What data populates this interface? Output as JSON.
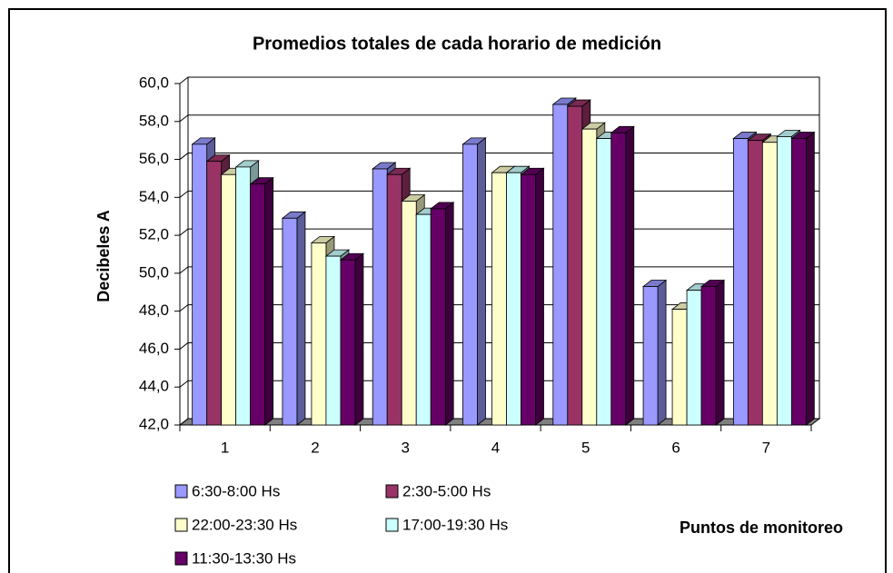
{
  "chart_data": {
    "type": "bar3d",
    "title": "Promedios totales de cada horario de medición",
    "y_label": "Decibeles A",
    "x_label": "Puntos de monitoreo",
    "categories": [
      "1",
      "2",
      "3",
      "4",
      "5",
      "6",
      "7"
    ],
    "series": [
      {
        "name": "6:30-8:00 Hs",
        "color": "#9999ff",
        "values": [
          56.8,
          52.9,
          55.5,
          56.8,
          58.9,
          49.3,
          57.1
        ]
      },
      {
        "name": "2:30-5:00 Hs",
        "color": "#993366",
        "values": [
          55.9,
          null,
          55.2,
          null,
          58.8,
          null,
          57.0
        ]
      },
      {
        "name": "22:00-23:30 Hs",
        "color": "#ffffcc",
        "values": [
          55.2,
          51.6,
          53.8,
          55.3,
          57.6,
          48.1,
          56.9
        ]
      },
      {
        "name": "17:00-19:30 Hs",
        "color": "#ccffff",
        "values": [
          55.6,
          50.9,
          53.1,
          55.3,
          57.1,
          49.1,
          57.2
        ]
      },
      {
        "name": "11:30-13:30 Hs",
        "color": "#660066",
        "values": [
          54.7,
          50.7,
          53.4,
          55.2,
          57.4,
          49.3,
          57.1
        ]
      }
    ],
    "ylim": [
      42,
      60
    ],
    "yticks": [
      {
        "value": 42,
        "label": "42,0"
      },
      {
        "value": 44,
        "label": "44,0"
      },
      {
        "value": 46,
        "label": "46,0"
      },
      {
        "value": 48,
        "label": "48,0"
      },
      {
        "value": 50,
        "label": "50,0"
      },
      {
        "value": 52,
        "label": "52,0"
      },
      {
        "value": 54,
        "label": "54,0"
      },
      {
        "value": 56,
        "label": "56,0"
      },
      {
        "value": 58,
        "label": "58,0"
      },
      {
        "value": 60,
        "label": "60,0"
      }
    ],
    "grid": true
  }
}
